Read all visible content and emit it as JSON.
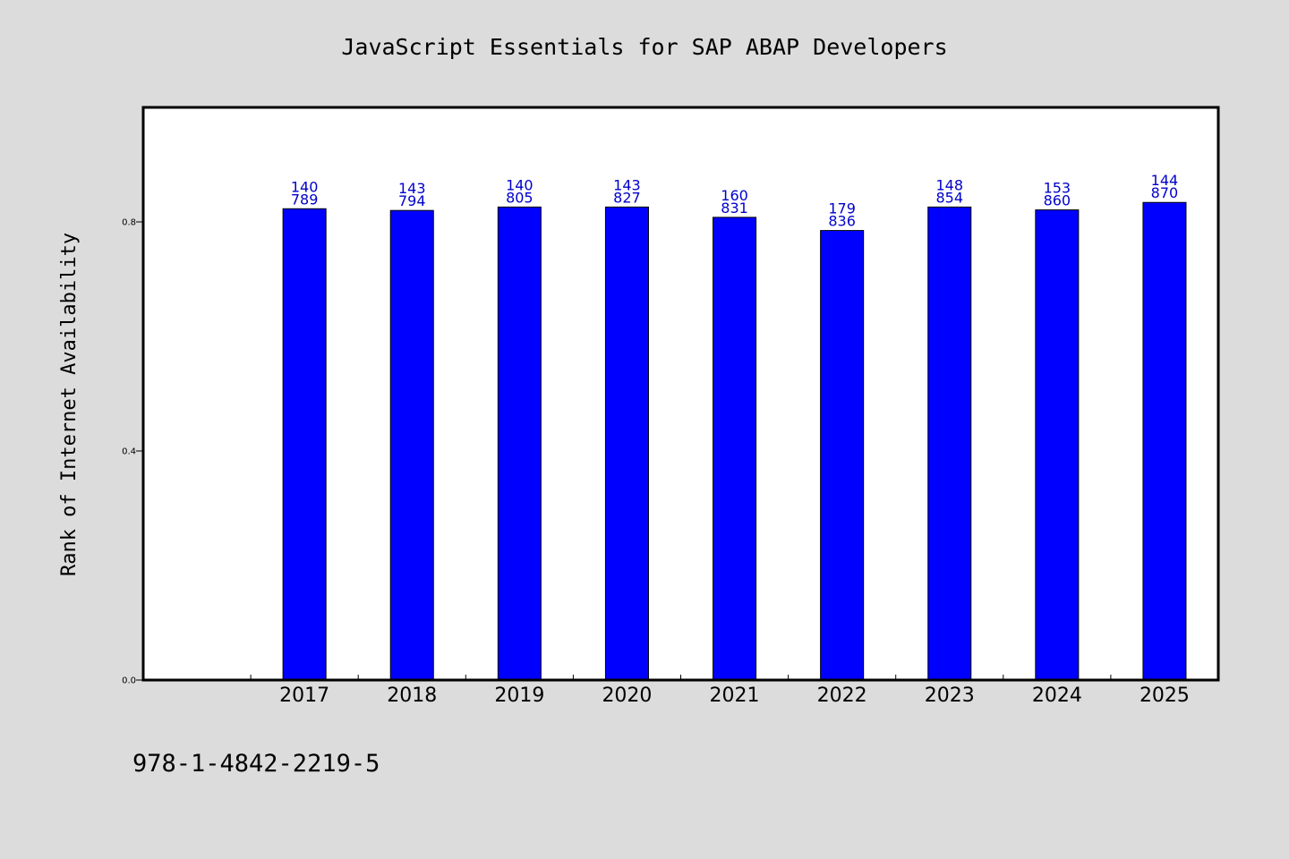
{
  "chart_data": {
    "type": "bar",
    "title": "JavaScript Essentials for SAP ABAP Developers",
    "ylabel": "Rank of Internet Availability",
    "xlabel": "",
    "categories": [
      "2017",
      "2018",
      "2019",
      "2020",
      "2021",
      "2022",
      "2023",
      "2024",
      "2025"
    ],
    "values": [
      0.823,
      0.82,
      0.826,
      0.826,
      0.808,
      0.785,
      0.826,
      0.821,
      0.834
    ],
    "bar_labels": [
      [
        "140",
        "789"
      ],
      [
        "143",
        "794"
      ],
      [
        "140",
        "805"
      ],
      [
        "143",
        "827"
      ],
      [
        "160",
        "831"
      ],
      [
        "179",
        "836"
      ],
      [
        "148",
        "854"
      ],
      [
        "153",
        "860"
      ],
      [
        "144",
        "870"
      ]
    ],
    "ylim": [
      0,
      1.0
    ],
    "yticks": [
      0.0,
      0.4,
      0.8
    ],
    "ytick_labels": [
      "0.0",
      "0.4",
      "0.8"
    ],
    "x_extra_slot_before": true,
    "grid": false,
    "colors": {
      "bar": "#0000ff",
      "label": "#0000cc",
      "background": "#dcdcdc",
      "plot": "#ffffff"
    }
  },
  "footer": {
    "isbn": "978-1-4842-2219-5"
  }
}
